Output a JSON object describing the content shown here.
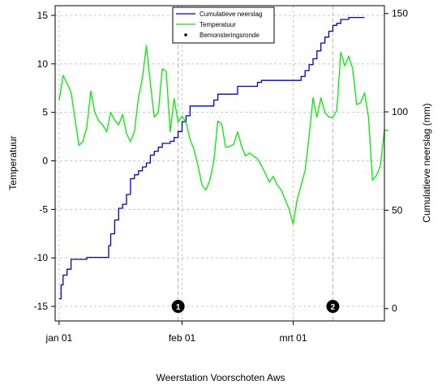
{
  "chart_data": {
    "type": "line",
    "xlabel": "Weerstation Voorschoten Aws",
    "ylabel_left": "Temperatuur",
    "ylabel_right": "Cumulatieve neerslag (mm)",
    "x_ticks": [
      "jan 01",
      "feb 01",
      "mrt 01"
    ],
    "x_tick_days": [
      0,
      31,
      59
    ],
    "x_range_days": [
      -1,
      82
    ],
    "y_left_ticks": [
      "15",
      "10",
      "5",
      "0",
      "-5",
      "-10",
      "-15"
    ],
    "y_left_lim": [
      -16.5,
      16
    ],
    "y_right_ticks": [
      "150",
      "100",
      "50",
      "0"
    ],
    "y_right_lim": [
      -6.3,
      154
    ],
    "grid": true,
    "legend_position": "top-center",
    "legend": [
      {
        "label": "Cumulatieve neerslag",
        "kind": "line",
        "color": "#0000cd"
      },
      {
        "label": "Temperatuur",
        "kind": "line",
        "color": "#00ee00"
      },
      {
        "label": "Bemonsteringsronde",
        "kind": "dot",
        "color": "#000000"
      }
    ],
    "series": [
      {
        "name": "Cumulatieve neerslag",
        "axis": "right",
        "color": "#0000cd",
        "step": true,
        "points": [
          [
            0,
            5
          ],
          [
            0.5,
            12
          ],
          [
            1,
            17
          ],
          [
            2,
            20
          ],
          [
            3,
            25
          ],
          [
            6,
            25
          ],
          [
            7,
            26
          ],
          [
            12,
            26
          ],
          [
            12.5,
            32
          ],
          [
            13,
            38
          ],
          [
            14,
            45
          ],
          [
            15,
            51
          ],
          [
            16,
            53
          ],
          [
            17,
            58
          ],
          [
            18,
            66
          ],
          [
            19,
            68
          ],
          [
            20,
            70
          ],
          [
            21,
            72
          ],
          [
            22,
            74
          ],
          [
            23,
            78
          ],
          [
            24,
            80
          ],
          [
            25,
            82
          ],
          [
            26,
            84
          ],
          [
            27,
            84
          ],
          [
            28,
            85
          ],
          [
            29,
            87
          ],
          [
            30,
            90
          ],
          [
            31,
            95
          ],
          [
            32,
            98
          ],
          [
            33,
            103
          ],
          [
            34,
            103
          ],
          [
            38,
            103
          ],
          [
            39,
            106
          ],
          [
            40,
            109
          ],
          [
            44,
            109
          ],
          [
            45,
            113
          ],
          [
            49,
            113
          ],
          [
            50,
            115
          ],
          [
            51,
            116
          ],
          [
            60,
            116
          ],
          [
            61,
            118
          ],
          [
            62,
            121
          ],
          [
            63,
            124
          ],
          [
            64,
            127
          ],
          [
            65,
            131
          ],
          [
            66,
            135
          ],
          [
            67,
            138
          ],
          [
            68,
            141
          ],
          [
            69,
            144
          ],
          [
            70,
            145
          ],
          [
            71,
            147
          ],
          [
            72,
            147
          ],
          [
            73,
            148
          ],
          [
            77,
            148
          ]
        ]
      },
      {
        "name": "Temperatuur",
        "axis": "left",
        "color": "#00ee00",
        "step": false,
        "points": [
          [
            0,
            6.2
          ],
          [
            1,
            8.8
          ],
          [
            2,
            8
          ],
          [
            3,
            7.1
          ],
          [
            4,
            4.3
          ],
          [
            5,
            1.6
          ],
          [
            6,
            2
          ],
          [
            7,
            3.5
          ],
          [
            8,
            7.2
          ],
          [
            9,
            5
          ],
          [
            10,
            4.1
          ],
          [
            11,
            3.7
          ],
          [
            12,
            3
          ],
          [
            13,
            5
          ],
          [
            14,
            4.2
          ],
          [
            15,
            3.7
          ],
          [
            16,
            4.8
          ],
          [
            17,
            2.8
          ],
          [
            18,
            2
          ],
          [
            19,
            3
          ],
          [
            20,
            6.5
          ],
          [
            21,
            8.5
          ],
          [
            22,
            11.9
          ],
          [
            23,
            8
          ],
          [
            24,
            4.5
          ],
          [
            25,
            5
          ],
          [
            26,
            9.5
          ],
          [
            27,
            9.2
          ],
          [
            28,
            3
          ],
          [
            29,
            6.4
          ],
          [
            30,
            4
          ],
          [
            31,
            4.6
          ],
          [
            32,
            4
          ],
          [
            33,
            2.2
          ],
          [
            34,
            1.2
          ],
          [
            35,
            -0.5
          ],
          [
            36,
            -2.5
          ],
          [
            37,
            -3
          ],
          [
            38,
            -2
          ],
          [
            39,
            0
          ],
          [
            40,
            4.1
          ],
          [
            41,
            3.8
          ],
          [
            42,
            1.4
          ],
          [
            43,
            1.5
          ],
          [
            44,
            1.7
          ],
          [
            45,
            3
          ],
          [
            46,
            1.5
          ],
          [
            47,
            0.5
          ],
          [
            48,
            0.8
          ],
          [
            49,
            0.5
          ],
          [
            50,
            0.2
          ],
          [
            51,
            -0.5
          ],
          [
            52,
            -1.3
          ],
          [
            53,
            -2.2
          ],
          [
            54,
            -1.6
          ],
          [
            55,
            -2.5
          ],
          [
            56,
            -3
          ],
          [
            57,
            -4
          ],
          [
            58,
            -5
          ],
          [
            59,
            -6.5
          ],
          [
            60,
            -4
          ],
          [
            61,
            -2.5
          ],
          [
            62,
            -1
          ],
          [
            63,
            2.5
          ],
          [
            64,
            6.5
          ],
          [
            65,
            4.5
          ],
          [
            66,
            6.5
          ],
          [
            67,
            5
          ],
          [
            68,
            4.5
          ],
          [
            69,
            4.5
          ],
          [
            70,
            5.2
          ],
          [
            71,
            11.2
          ],
          [
            72,
            9.8
          ],
          [
            73,
            10.8
          ],
          [
            74,
            9.5
          ],
          [
            75,
            5.8
          ],
          [
            76,
            6
          ],
          [
            77,
            7
          ],
          [
            78,
            4.5
          ],
          [
            79,
            -2
          ],
          [
            80,
            -1.5
          ],
          [
            81,
            -0.5
          ],
          [
            82,
            3.2
          ],
          [
            83,
            3.1
          ]
        ]
      }
    ],
    "sampling_rounds": [
      {
        "label": "1",
        "day": 30
      },
      {
        "label": "2",
        "day": 69
      }
    ]
  }
}
